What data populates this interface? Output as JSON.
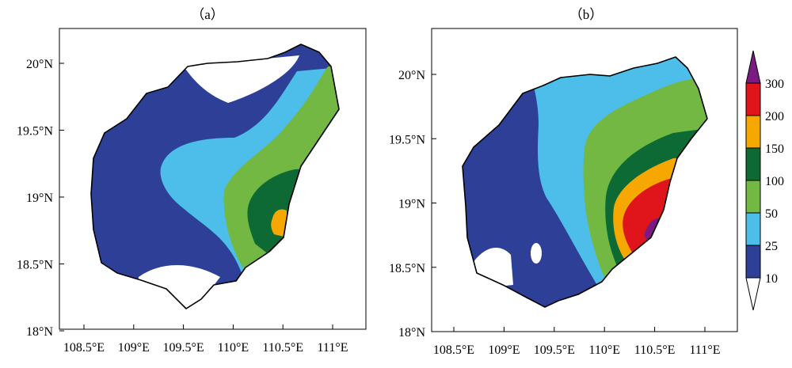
{
  "panels": [
    {
      "id": "a",
      "title": "（a）",
      "x_ticks": [
        {
          "lon": 108.5,
          "label": "108.5°E"
        },
        {
          "lon": 109.0,
          "label": "109°E"
        },
        {
          "lon": 109.5,
          "label": "109.5°E"
        },
        {
          "lon": 110.0,
          "label": "110°E"
        },
        {
          "lon": 110.5,
          "label": "110.5°E"
        },
        {
          "lon": 111.0,
          "label": "111°E"
        }
      ],
      "y_ticks": [
        {
          "lat": 20.0,
          "label": "20°N"
        },
        {
          "lat": 19.5,
          "label": "19.5°N"
        },
        {
          "lat": 19.0,
          "label": "19°N"
        },
        {
          "lat": 18.5,
          "label": "18.5°N"
        },
        {
          "lat": 18.0,
          "label": "18°N"
        }
      ]
    },
    {
      "id": "b",
      "title": "（b）",
      "x_ticks": [
        {
          "lon": 108.5,
          "label": "108.5°E"
        },
        {
          "lon": 109.0,
          "label": "109°E"
        },
        {
          "lon": 109.5,
          "label": "109.5°E"
        },
        {
          "lon": 110.0,
          "label": "110°E"
        },
        {
          "lon": 110.5,
          "label": "110.5°E"
        },
        {
          "lon": 111.0,
          "label": "111°E"
        }
      ],
      "y_ticks": [
        {
          "lat": 20.0,
          "label": "20°N"
        },
        {
          "lat": 19.5,
          "label": "19.5°N"
        },
        {
          "lat": 19.0,
          "label": "19°N"
        },
        {
          "lat": 18.5,
          "label": "18.5°N"
        },
        {
          "lat": 18.0,
          "label": "18°N"
        }
      ]
    }
  ],
  "colorbar": {
    "levels": [
      "10",
      "25",
      "50",
      "100",
      "150",
      "200",
      "300"
    ],
    "colors": [
      "#ffffff",
      "#2e3f98",
      "#4dbde9",
      "#72b843",
      "#0e6a34",
      "#f6a800",
      "#e0141b",
      "#7b1a83"
    ]
  }
}
